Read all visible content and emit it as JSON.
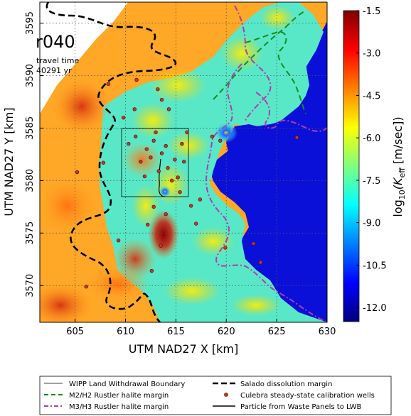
{
  "plot": {
    "run_label": "r040",
    "travel_time_label": "travel time",
    "travel_time_value": "40291 yr",
    "xlabel": "UTM NAD27 X [km]",
    "ylabel": "UTM NAD27 Y [km]",
    "x_ticks": [
      "605",
      "610",
      "615",
      "620",
      "625",
      "630"
    ],
    "y_ticks": [
      "3570",
      "3575",
      "3580",
      "3585",
      "3590",
      "3595"
    ],
    "xlim": [
      601.5,
      630
    ],
    "ylim": [
      3566.5,
      3597
    ]
  },
  "colorbar": {
    "label_main": "log",
    "label_sub": "10",
    "label_rest": "(K",
    "label_sub2": "eff",
    "label_end": " [m/sec])",
    "ticks": [
      "-1.5",
      "-3.0",
      "-4.5",
      "-6.0",
      "-7.5",
      "-9.0",
      "-10.5",
      "-12.0"
    ],
    "range": [
      -12.5,
      -1.5
    ],
    "colors": [
      "#00007f",
      "#0000ff",
      "#007fff",
      "#00ffff",
      "#7fff7f",
      "#ffff00",
      "#ff7f00",
      "#ff0000",
      "#7f0000"
    ]
  },
  "legend": {
    "items": [
      {
        "label": "WIPP Land Withdrawal Boundary",
        "color": "#000000",
        "style": "solid-thin"
      },
      {
        "label": "Salado dissolution margin",
        "color": "#000000",
        "style": "dashed-thick"
      },
      {
        "label": "M2/H2 Rustler halite margin",
        "color": "#1a8c1a",
        "style": "dashed"
      },
      {
        "label": "Culebra steady-state calibration wells",
        "color": "#c0392b",
        "style": "dot"
      },
      {
        "label": "M3/H3 Rustler halite margin",
        "color": "#b03cb0",
        "style": "dashdot"
      },
      {
        "label": "Particle from Waste Panels to LWB",
        "color": "#000000",
        "style": "solid"
      }
    ]
  },
  "wells": [
    [
      605.2,
      3580.8
    ],
    [
      607.8,
      3581.7
    ],
    [
      608.3,
      3589.2
    ],
    [
      609.8,
      3586.0
    ],
    [
      610.3,
      3583.5
    ],
    [
      611.0,
      3584.2
    ],
    [
      611.5,
      3581.8
    ],
    [
      611.9,
      3580.4
    ],
    [
      612.1,
      3583.0
    ],
    [
      612.5,
      3582.2
    ],
    [
      612.8,
      3583.8
    ],
    [
      613.0,
      3584.6
    ],
    [
      613.3,
      3580.9
    ],
    [
      613.6,
      3582.6
    ],
    [
      614.0,
      3583.3
    ],
    [
      614.2,
      3581.2
    ],
    [
      614.6,
      3580.0
    ],
    [
      614.9,
      3582.0
    ],
    [
      615.2,
      3580.3
    ],
    [
      615.6,
      3583.5
    ],
    [
      615.8,
      3581.8
    ],
    [
      616.1,
      3584.6
    ],
    [
      616.5,
      3577.6
    ],
    [
      617.0,
      3575.9
    ],
    [
      617.4,
      3578.2
    ],
    [
      618.6,
      3584.2
    ],
    [
      619.4,
      3583.8
    ],
    [
      614.3,
      3586.8
    ],
    [
      613.6,
      3587.7
    ],
    [
      609.3,
      3574.3
    ],
    [
      612.2,
      3575.8
    ],
    [
      613.5,
      3573.8
    ],
    [
      614.0,
      3576.8
    ],
    [
      612.6,
      3571.4
    ],
    [
      619.9,
      3573.6
    ],
    [
      622.7,
      3574.0
    ],
    [
      623.4,
      3572.2
    ],
    [
      606.1,
      3569.9
    ],
    [
      611.1,
      3589.6
    ],
    [
      613.2,
      3588.7
    ],
    [
      627.0,
      3584.1
    ],
    [
      615.4,
      3578.9
    ],
    [
      612.8,
      3577.5
    ],
    [
      610.9,
      3586.8
    ]
  ]
}
